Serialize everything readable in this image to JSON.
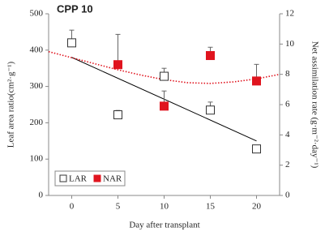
{
  "chart_data": {
    "type": "scatter",
    "title": "CPP 10",
    "x_label": "Day after transplant",
    "y_label": "Leaf area ratio(cm²·g⁻¹)",
    "y2_label": "Net assimilation rate (g·m⁻²·day⁻¹)",
    "x": [
      0,
      5,
      10,
      15,
      20
    ],
    "xlim": [
      -2.5,
      22.5
    ],
    "xticks": [
      0,
      5,
      10,
      15,
      20
    ],
    "ylim": [
      0,
      500
    ],
    "yticks": [
      0,
      100,
      200,
      300,
      400,
      500
    ],
    "y2lim": [
      0,
      12
    ],
    "y2ticks": [
      0,
      2,
      4,
      6,
      8,
      10,
      12
    ],
    "legend": "lower left",
    "series": [
      {
        "name": "LAR",
        "color": "#000000",
        "marker": "open-square",
        "values": [
          420,
          222,
          328,
          235,
          128
        ],
        "errors": [
          35,
          12,
          22,
          22,
          7
        ]
      },
      {
        "name": "NAR",
        "color": "#e0141e",
        "marker": "filled-square",
        "axis": "y2",
        "values": [
          null,
          8.64,
          5.9,
          9.24,
          7.56
        ],
        "errors": [
          null,
          2.0,
          1.0,
          0.55,
          1.1
        ]
      }
    ],
    "trendlines": [
      {
        "color": "#000000",
        "style": "solid",
        "x": [
          0,
          20
        ],
        "values": [
          380,
          150
        ]
      },
      {
        "color": "#e0141e",
        "style": "dotted",
        "axis": "y2",
        "x": [
          -2.5,
          0,
          2.5,
          5,
          7.5,
          10,
          12.5,
          15,
          17.5,
          20,
          22.5
        ],
        "values": [
          9.5,
          9.1,
          8.7,
          8.3,
          7.95,
          7.65,
          7.45,
          7.4,
          7.5,
          7.7,
          8.0
        ]
      }
    ]
  }
}
